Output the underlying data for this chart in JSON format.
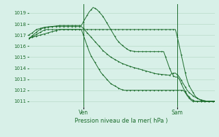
{
  "title": "Pression niveau de la mer( hPa )",
  "bg_color": "#d8f0e8",
  "grid_color": "#b0d4c0",
  "line_color": "#1a6b2a",
  "ylim": [
    1010.5,
    1019.8
  ],
  "yticks": [
    1011,
    1012,
    1013,
    1014,
    1015,
    1016,
    1017,
    1018,
    1019
  ],
  "xlim": [
    0,
    95
  ],
  "ven_x": 28,
  "sam_x": 76,
  "series": [
    [
      1016.7,
      1016.75,
      1016.8,
      1016.85,
      1016.9,
      1016.95,
      1017.0,
      1017.05,
      1017.1,
      1017.15,
      1017.2,
      1017.25,
      1017.3,
      1017.35,
      1017.4,
      1017.45,
      1017.5,
      1017.5,
      1017.5,
      1017.5,
      1017.5,
      1017.5,
      1017.5,
      1017.5,
      1017.5,
      1017.5,
      1017.5,
      1017.5,
      1017.5,
      1017.5,
      1017.5,
      1017.5,
      1017.5,
      1017.5,
      1017.5,
      1017.5,
      1017.5,
      1017.5,
      1017.5,
      1017.5,
      1017.5,
      1017.5,
      1017.5,
      1017.5,
      1017.5,
      1017.5,
      1017.5,
      1017.5,
      1017.5,
      1017.5,
      1017.5,
      1017.5,
      1017.5,
      1017.5,
      1017.5,
      1017.5,
      1017.5,
      1017.5,
      1017.5,
      1017.5,
      1017.5,
      1017.5,
      1017.5,
      1017.5,
      1017.5,
      1017.5,
      1017.5,
      1017.5,
      1017.5,
      1017.5,
      1017.5,
      1017.5,
      1017.5,
      1017.5,
      1017.5,
      1017.5,
      1016.8,
      1016.0,
      1015.2,
      1014.4,
      1013.6,
      1012.9,
      1012.4,
      1012.1,
      1011.8,
      1011.5,
      1011.3,
      1011.2,
      1011.1,
      1011.0,
      1011.0,
      1011.0,
      1011.0,
      1011.0,
      1011.0,
      1011.0
    ],
    [
      1017.0,
      1017.1,
      1017.2,
      1017.35,
      1017.5,
      1017.55,
      1017.6,
      1017.65,
      1017.7,
      1017.72,
      1017.74,
      1017.76,
      1017.78,
      1017.8,
      1017.82,
      1017.84,
      1017.86,
      1017.86,
      1017.86,
      1017.86,
      1017.86,
      1017.86,
      1017.86,
      1017.86,
      1017.86,
      1017.86,
      1017.86,
      1017.86,
      1018.2,
      1018.5,
      1018.8,
      1019.1,
      1019.3,
      1019.5,
      1019.4,
      1019.3,
      1019.1,
      1018.9,
      1018.7,
      1018.4,
      1018.1,
      1017.8,
      1017.5,
      1017.2,
      1016.9,
      1016.6,
      1016.4,
      1016.2,
      1016.05,
      1015.9,
      1015.78,
      1015.65,
      1015.6,
      1015.55,
      1015.52,
      1015.5,
      1015.5,
      1015.5,
      1015.5,
      1015.5,
      1015.5,
      1015.5,
      1015.5,
      1015.5,
      1015.5,
      1015.5,
      1015.5,
      1015.5,
      1015.5,
      1015.5,
      1015.0,
      1014.5,
      1014.0,
      1013.6,
      1013.3,
      1013.2,
      1013.2,
      1013.0,
      1012.6,
      1012.2,
      1011.9,
      1011.6,
      1011.4,
      1011.2,
      1011.1,
      1011.0,
      1011.0,
      1011.0,
      1011.0,
      1011.0,
      1011.0,
      1011.0,
      1011.0,
      1011.0,
      1011.0,
      1011.0
    ],
    [
      1016.7,
      1016.75,
      1016.85,
      1016.95,
      1017.05,
      1017.15,
      1017.25,
      1017.35,
      1017.45,
      1017.5,
      1017.5,
      1017.5,
      1017.5,
      1017.5,
      1017.5,
      1017.5,
      1017.5,
      1017.5,
      1017.5,
      1017.5,
      1017.5,
      1017.5,
      1017.5,
      1017.5,
      1017.5,
      1017.5,
      1017.5,
      1017.5,
      1017.0,
      1016.5,
      1016.0,
      1015.5,
      1015.1,
      1014.8,
      1014.5,
      1014.2,
      1013.9,
      1013.6,
      1013.4,
      1013.2,
      1013.0,
      1012.8,
      1012.6,
      1012.5,
      1012.4,
      1012.3,
      1012.2,
      1012.1,
      1012.05,
      1012.0,
      1012.0,
      1012.0,
      1012.0,
      1012.0,
      1012.0,
      1012.0,
      1012.0,
      1012.0,
      1012.0,
      1012.0,
      1012.0,
      1012.0,
      1012.0,
      1012.0,
      1012.0,
      1012.0,
      1012.0,
      1012.0,
      1012.0,
      1012.0,
      1012.0,
      1012.0,
      1012.0,
      1012.0,
      1012.0,
      1012.0,
      1012.0,
      1012.0,
      1012.0,
      1012.0,
      1011.8,
      1011.5,
      1011.3,
      1011.1,
      1011.0,
      1011.0,
      1011.0,
      1011.0,
      1011.0,
      1011.0,
      1011.0,
      1011.0,
      1011.0,
      1011.0,
      1011.0,
      1011.0
    ],
    [
      1016.7,
      1016.8,
      1016.95,
      1017.1,
      1017.25,
      1017.4,
      1017.5,
      1017.6,
      1017.65,
      1017.7,
      1017.72,
      1017.74,
      1017.76,
      1017.77,
      1017.77,
      1017.77,
      1017.77,
      1017.77,
      1017.77,
      1017.77,
      1017.77,
      1017.77,
      1017.77,
      1017.77,
      1017.77,
      1017.77,
      1017.77,
      1017.77,
      1017.6,
      1017.4,
      1017.2,
      1017.0,
      1016.8,
      1016.6,
      1016.4,
      1016.2,
      1016.0,
      1015.8,
      1015.6,
      1015.45,
      1015.3,
      1015.15,
      1015.0,
      1014.9,
      1014.8,
      1014.7,
      1014.6,
      1014.5,
      1014.42,
      1014.35,
      1014.28,
      1014.22,
      1014.16,
      1014.1,
      1014.05,
      1014.0,
      1013.95,
      1013.9,
      1013.85,
      1013.8,
      1013.75,
      1013.7,
      1013.65,
      1013.6,
      1013.55,
      1013.5,
      1013.48,
      1013.46,
      1013.44,
      1013.42,
      1013.4,
      1013.38,
      1013.36,
      1013.5,
      1013.55,
      1013.55,
      1013.4,
      1013.2,
      1012.9,
      1012.6,
      1012.3,
      1012.0,
      1011.8,
      1011.65,
      1011.5,
      1011.38,
      1011.28,
      1011.2,
      1011.14,
      1011.1,
      1011.05,
      1011.0,
      1011.0,
      1011.0,
      1011.0,
      1011.0
    ]
  ]
}
